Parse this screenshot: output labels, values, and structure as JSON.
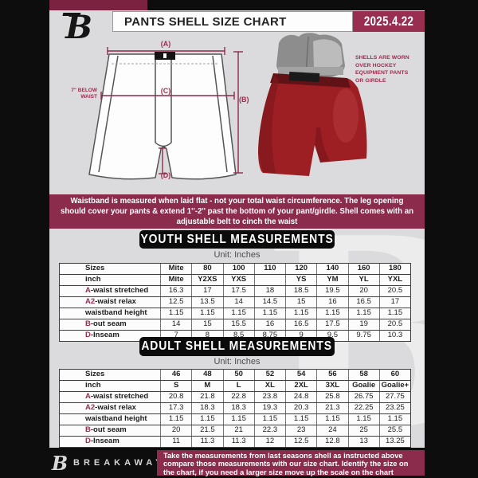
{
  "colors": {
    "maroon": "#8c2c4c",
    "maroon_dark": "#7a2240",
    "date_box": "#982e50",
    "label_accent": "#a02c4e",
    "shell_red": "#9d1f24",
    "panel_gray": "#dbdbdd",
    "black": "#0d0d0d"
  },
  "header": {
    "title": "PANTS SHELL SIZE CHART",
    "date": "2025.4.22"
  },
  "diagram": {
    "label_a": "(A)",
    "label_b": "(B)",
    "label_c": "(C)",
    "label_d": "(D)",
    "waist_note": "7\" BELOW WAIST",
    "photo_note": "SHELLS ARE WORN OVER HOCKEY EQUIPMENT PANTS OR GIRDLE"
  },
  "info_banner": "Waistband is measured when laid flat - not your total waist circumference. The leg opening should cover your pants & extend 1''-2'' past the bottom of your pant/girdle. Shell comes with an adjustable belt to cinch the waist",
  "youth": {
    "heading": "YOUTH SHELL MEASUREMENTS",
    "unit": "Unit: Inches",
    "rows": [
      {
        "prefix": "",
        "label": "Sizes",
        "header": true,
        "cells": [
          "Mite",
          "80",
          "100",
          "110",
          "120",
          "140",
          "160",
          "180"
        ]
      },
      {
        "prefix": "",
        "label": "inch",
        "header": true,
        "cells": [
          "Mite",
          "Y2XS",
          "YXS",
          "",
          "YS",
          "YM",
          "YL",
          "YXL"
        ]
      },
      {
        "prefix": "A",
        "label": "-waist stretched",
        "header": false,
        "cells": [
          "16.3",
          "17",
          "17.5",
          "18",
          "18.5",
          "19.5",
          "20",
          "20.5"
        ]
      },
      {
        "prefix": "A2",
        "label": "-waist relax",
        "header": false,
        "cells": [
          "12.5",
          "13.5",
          "14",
          "14.5",
          "15",
          "16",
          "16.5",
          "17"
        ]
      },
      {
        "prefix": "",
        "label": "waistband height",
        "header": false,
        "cells": [
          "1.15",
          "1.15",
          "1.15",
          "1.15",
          "1.15",
          "1.15",
          "1.15",
          "1.15"
        ]
      },
      {
        "prefix": "B",
        "label": "-out seam",
        "header": false,
        "cells": [
          "14",
          "15",
          "15.5",
          "16",
          "16.5",
          "17.5",
          "19",
          "20.5"
        ]
      },
      {
        "prefix": "D",
        "label": "-Inseam",
        "header": false,
        "cells": [
          "7",
          "8",
          "8.5",
          "8.75",
          "9",
          "9.5",
          "9.75",
          "10.3"
        ]
      }
    ]
  },
  "adult": {
    "heading": "ADULT SHELL MEASUREMENTS",
    "unit": "Unit: Inches",
    "rows": [
      {
        "prefix": "",
        "label": "Sizes",
        "header": true,
        "cells": [
          "46",
          "48",
          "50",
          "52",
          "54",
          "56",
          "58",
          "60"
        ]
      },
      {
        "prefix": "",
        "label": "inch",
        "header": true,
        "cells": [
          "S",
          "M",
          "L",
          "XL",
          "2XL",
          "3XL",
          "Goalie",
          "Goalie+"
        ]
      },
      {
        "prefix": "A",
        "label": "-waist stretched",
        "header": false,
        "cells": [
          "20.8",
          "21.8",
          "22.8",
          "23.8",
          "24.8",
          "25.8",
          "26.75",
          "27.75"
        ]
      },
      {
        "prefix": "A2",
        "label": "-waist relax",
        "header": false,
        "cells": [
          "17.3",
          "18.3",
          "18.3",
          "19.3",
          "20.3",
          "21.3",
          "22.25",
          "23.25"
        ]
      },
      {
        "prefix": "",
        "label": "waistband height",
        "header": false,
        "cells": [
          "1.15",
          "1.15",
          "1.15",
          "1.15",
          "1.15",
          "1.15",
          "1.15",
          "1.15"
        ]
      },
      {
        "prefix": "B",
        "label": "-out seam",
        "header": false,
        "cells": [
          "20",
          "21.5",
          "21",
          "22.3",
          "23",
          "24",
          "25",
          "25.5"
        ]
      },
      {
        "prefix": "D",
        "label": "-Inseam",
        "header": false,
        "cells": [
          "11",
          "11.3",
          "11.3",
          "12",
          "12.5",
          "12.8",
          "13",
          "13.25"
        ]
      }
    ]
  },
  "footer": {
    "brand": "BREAKAWAY",
    "note": "Take the measurements from last seasons shell as instructed above compare those measurements  with our size chart. Identify the size on the chart, if you need a larger size move up the scale on the chart"
  }
}
